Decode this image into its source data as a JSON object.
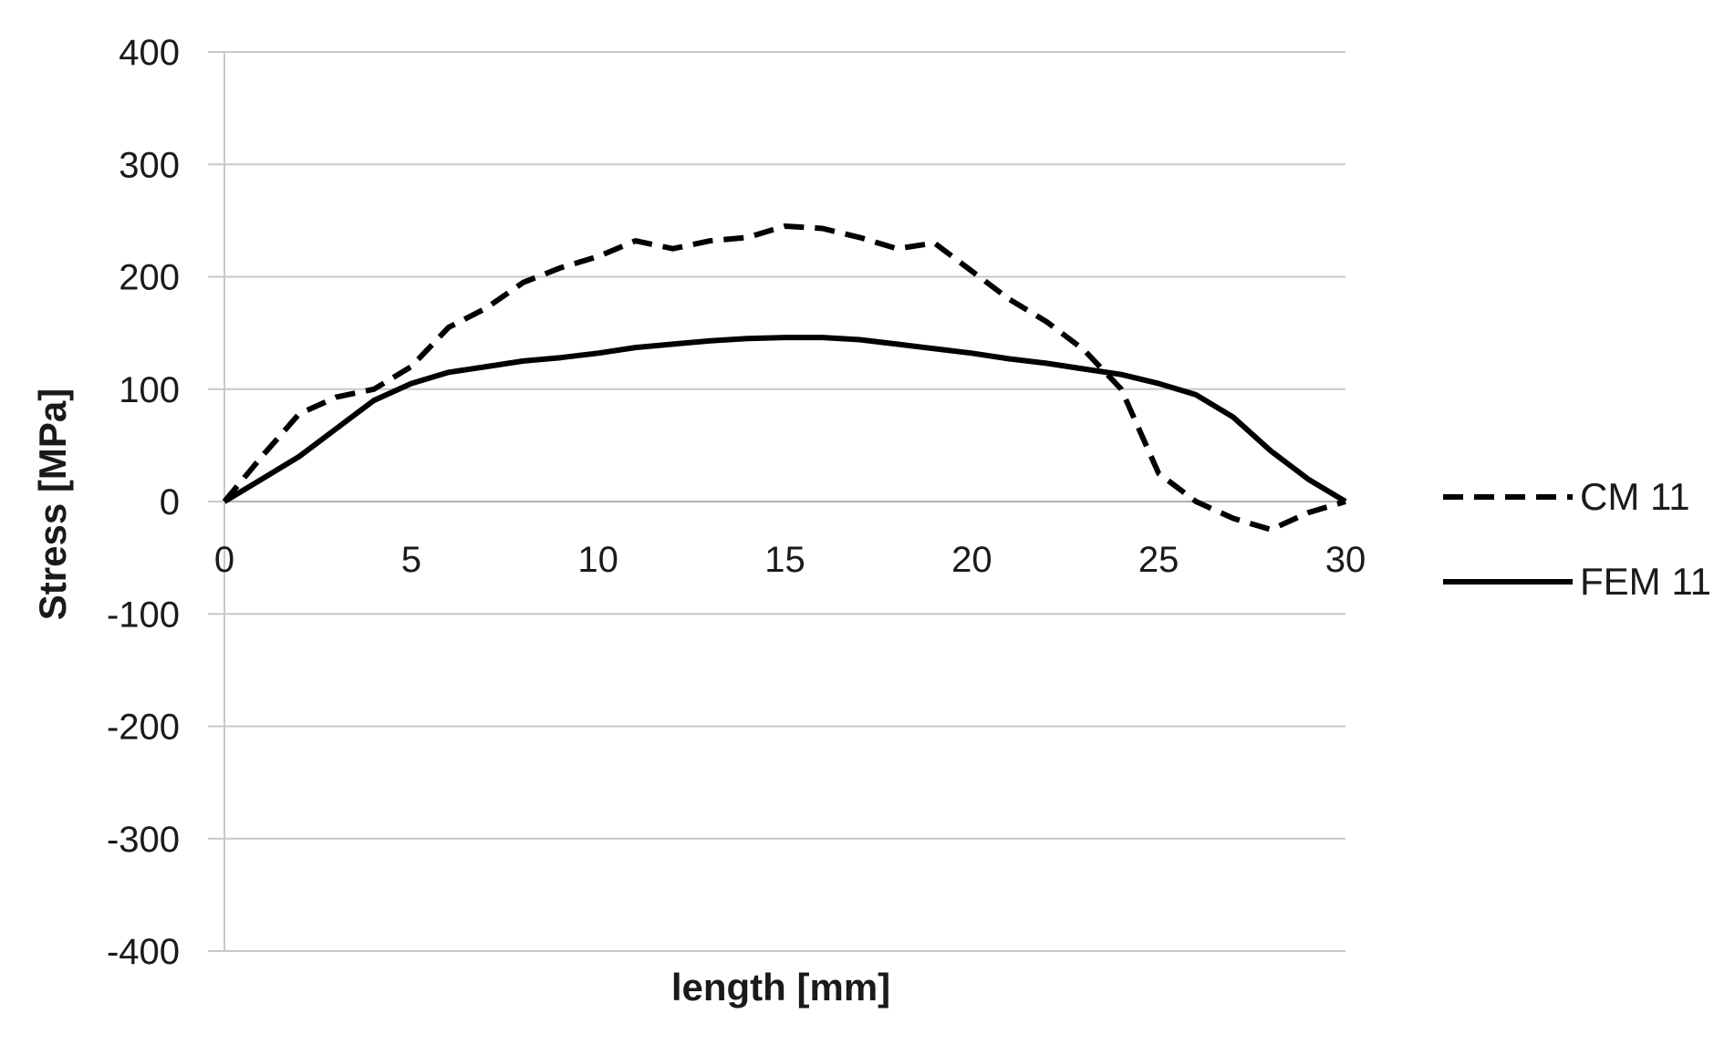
{
  "chart_data": {
    "type": "line",
    "title": "",
    "xlabel": "length [mm]",
    "ylabel": "Stress [MPa]",
    "xlim": [
      0,
      30
    ],
    "ylim": [
      -400,
      400
    ],
    "x_ticks": [
      "0",
      "5",
      "10",
      "15",
      "20",
      "25",
      "30"
    ],
    "y_ticks": [
      "400",
      "300",
      "200",
      "100",
      "0",
      "-100",
      "-200",
      "-300",
      "-400"
    ],
    "grid": "horizontal",
    "legend_position": "right",
    "series": [
      {
        "name": "CM 11",
        "style": "dashed",
        "color": "#000000",
        "x": [
          0,
          1,
          2,
          3,
          4,
          5,
          6,
          7,
          8,
          9,
          10,
          11,
          12,
          13,
          14,
          15,
          16,
          17,
          18,
          19,
          20,
          21,
          22,
          23,
          24,
          25,
          26,
          27,
          28,
          29,
          30
        ],
        "y": [
          0,
          40,
          78,
          93,
          100,
          120,
          155,
          172,
          195,
          208,
          218,
          232,
          225,
          232,
          235,
          245,
          243,
          235,
          225,
          230,
          205,
          180,
          160,
          135,
          100,
          25,
          0,
          -15,
          -25,
          -10,
          0
        ]
      },
      {
        "name": "FEM 11",
        "style": "solid",
        "color": "#000000",
        "x": [
          0,
          1,
          2,
          3,
          4,
          5,
          6,
          7,
          8,
          9,
          10,
          11,
          12,
          13,
          14,
          15,
          16,
          17,
          18,
          19,
          20,
          21,
          22,
          23,
          24,
          25,
          26,
          27,
          28,
          29,
          30
        ],
        "y": [
          0,
          20,
          40,
          65,
          90,
          105,
          115,
          120,
          125,
          128,
          132,
          137,
          140,
          143,
          145,
          146,
          146,
          144,
          140,
          136,
          132,
          127,
          123,
          118,
          113,
          105,
          95,
          75,
          45,
          20,
          0
        ]
      }
    ]
  }
}
